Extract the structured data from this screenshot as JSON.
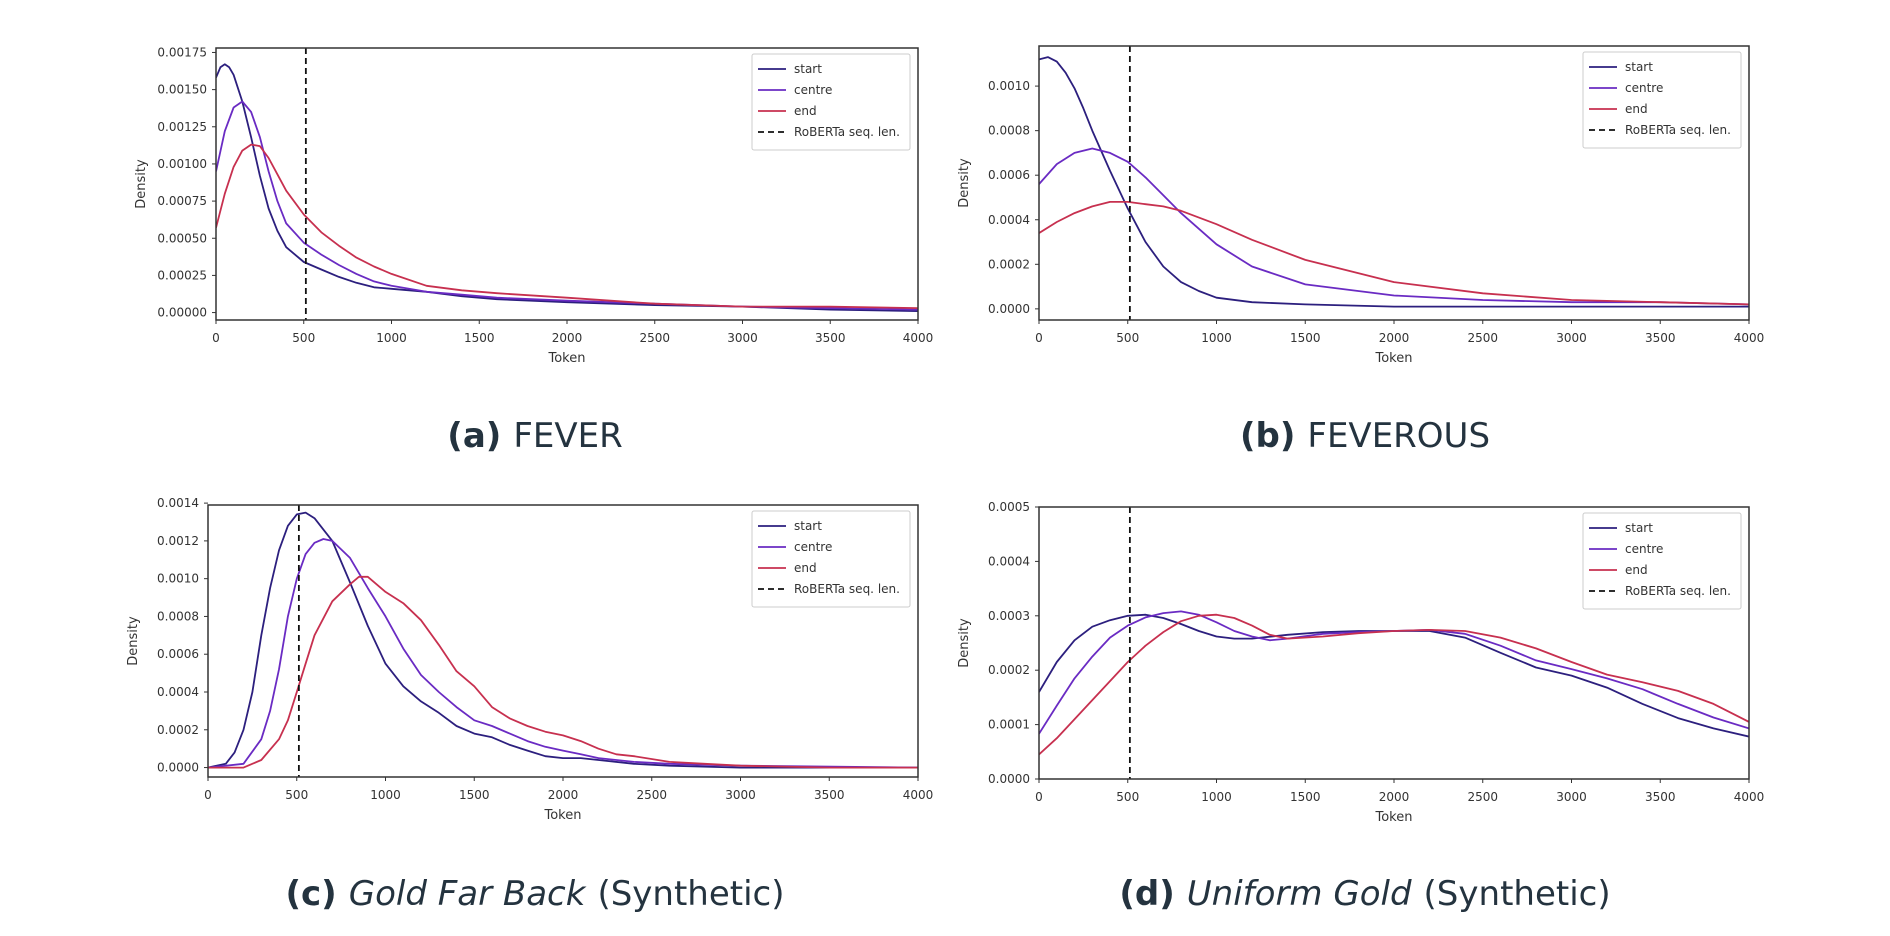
{
  "chart_data": [
    {
      "type": "line",
      "caption": {
        "label": "(a)",
        "pre": "FEVER",
        "italic": "",
        "post": ""
      },
      "xlabel": "Token",
      "ylabel": "Density",
      "xlim": [
        0,
        4000
      ],
      "ylim": [
        -5e-05,
        0.00178
      ],
      "xticks": [
        0,
        500,
        1000,
        1500,
        2000,
        2500,
        3000,
        3500,
        4000
      ],
      "xtick_labels": [
        "0",
        "500",
        "1000",
        "1500",
        "2000",
        "2500",
        "3000",
        "3500",
        "4000"
      ],
      "yticks": [
        0,
        0.00025,
        0.0005,
        0.00075,
        0.001,
        0.00125,
        0.0015,
        0.00175
      ],
      "ytick_labels": [
        "0.00000",
        "0.00025",
        "0.00050",
        "0.00075",
        "0.00100",
        "0.00125",
        "0.00150",
        "0.00175"
      ],
      "vline": {
        "x": 512,
        "name": "RoBERTa seq. len."
      },
      "legend": "top-right",
      "grid": false,
      "series": [
        {
          "name": "start",
          "color": "#2c1f7e",
          "x": [
            0,
            25,
            50,
            75,
            100,
            150,
            200,
            250,
            300,
            350,
            400,
            500,
            600,
            700,
            800,
            900,
            1000,
            1200,
            1400,
            1600,
            2000,
            2500,
            3000,
            3500,
            4000
          ],
          "y": [
            0.00158,
            0.00165,
            0.00167,
            0.00165,
            0.0016,
            0.00142,
            0.00118,
            0.00092,
            0.0007,
            0.00055,
            0.00044,
            0.00034,
            0.00029,
            0.00024,
            0.0002,
            0.00017,
            0.00016,
            0.00014,
            0.00011,
            9e-05,
            7e-05,
            5e-05,
            4e-05,
            2e-05,
            1e-05
          ]
        },
        {
          "name": "centre",
          "color": "#6a2bc3",
          "x": [
            0,
            50,
            100,
            150,
            200,
            250,
            300,
            350,
            400,
            500,
            600,
            700,
            800,
            900,
            1000,
            1200,
            1400,
            1600,
            2000,
            2500,
            3000,
            3500,
            4000
          ],
          "y": [
            0.00095,
            0.00122,
            0.00138,
            0.00142,
            0.00135,
            0.00118,
            0.00095,
            0.00075,
            0.0006,
            0.00047,
            0.00039,
            0.00032,
            0.00026,
            0.00021,
            0.00018,
            0.00014,
            0.00012,
            0.0001,
            8e-05,
            6e-05,
            4e-05,
            3e-05,
            2e-05
          ]
        },
        {
          "name": "end",
          "color": "#c7304f",
          "x": [
            0,
            50,
            100,
            150,
            200,
            250,
            300,
            350,
            400,
            500,
            600,
            700,
            800,
            900,
            1000,
            1200,
            1400,
            1600,
            2000,
            2500,
            3000,
            3500,
            4000
          ],
          "y": [
            0.00057,
            0.0008,
            0.00098,
            0.00109,
            0.00113,
            0.00112,
            0.00104,
            0.00093,
            0.00082,
            0.00066,
            0.00054,
            0.00045,
            0.00037,
            0.00031,
            0.00026,
            0.00018,
            0.00015,
            0.00013,
            0.0001,
            6e-05,
            4e-05,
            4e-05,
            3e-05
          ]
        }
      ]
    },
    {
      "type": "line",
      "caption": {
        "label": "(b)",
        "pre": "FEVEROUS",
        "italic": "",
        "post": ""
      },
      "xlabel": "Token",
      "ylabel": "Density",
      "xlim": [
        0,
        4000
      ],
      "ylim": [
        -5e-05,
        0.00118
      ],
      "xticks": [
        0,
        500,
        1000,
        1500,
        2000,
        2500,
        3000,
        3500,
        4000
      ],
      "xtick_labels": [
        "0",
        "500",
        "1000",
        "1500",
        "2000",
        "2500",
        "3000",
        "3500",
        "4000"
      ],
      "yticks": [
        0,
        0.0002,
        0.0004,
        0.0006,
        0.0008,
        0.001
      ],
      "ytick_labels": [
        "0.0000",
        "0.0002",
        "0.0004",
        "0.0006",
        "0.0008",
        "0.0010"
      ],
      "vline": {
        "x": 512,
        "name": "RoBERTa seq. len."
      },
      "legend": "top-right",
      "grid": false,
      "series": [
        {
          "name": "start",
          "color": "#2c1f7e",
          "x": [
            0,
            50,
            100,
            150,
            200,
            250,
            300,
            400,
            500,
            600,
            700,
            800,
            900,
            1000,
            1200,
            1500,
            2000,
            3000,
            4000
          ],
          "y": [
            0.00112,
            0.00113,
            0.00111,
            0.00106,
            0.00099,
            0.0009,
            0.0008,
            0.00062,
            0.00045,
            0.0003,
            0.00019,
            0.00012,
            8e-05,
            5e-05,
            3e-05,
            2e-05,
            1e-05,
            1e-05,
            1e-05
          ]
        },
        {
          "name": "centre",
          "color": "#6a2bc3",
          "x": [
            0,
            100,
            200,
            300,
            400,
            500,
            600,
            700,
            800,
            1000,
            1200,
            1500,
            2000,
            2500,
            3000,
            3500,
            4000
          ],
          "y": [
            0.00056,
            0.00065,
            0.0007,
            0.00072,
            0.0007,
            0.00066,
            0.00059,
            0.00051,
            0.00043,
            0.00029,
            0.00019,
            0.00011,
            6e-05,
            4e-05,
            3e-05,
            3e-05,
            2e-05
          ]
        },
        {
          "name": "end",
          "color": "#c7304f",
          "x": [
            0,
            100,
            200,
            300,
            400,
            500,
            600,
            700,
            800,
            1000,
            1200,
            1500,
            2000,
            2500,
            3000,
            3500,
            4000
          ],
          "y": [
            0.00034,
            0.00039,
            0.00043,
            0.00046,
            0.00048,
            0.00048,
            0.00047,
            0.00046,
            0.00044,
            0.00038,
            0.00031,
            0.00022,
            0.00012,
            7e-05,
            4e-05,
            3e-05,
            2e-05
          ]
        }
      ]
    },
    {
      "type": "line",
      "caption": {
        "label": "(c)",
        "pre": "",
        "italic": "Gold Far Back",
        "post": "(Synthetic)"
      },
      "xlabel": "Token",
      "ylabel": "Density",
      "xlim": [
        0,
        4000
      ],
      "ylim": [
        -5e-05,
        0.00139
      ],
      "xticks": [
        0,
        500,
        1000,
        1500,
        2000,
        2500,
        3000,
        3500,
        4000
      ],
      "xtick_labels": [
        "0",
        "500",
        "1000",
        "1500",
        "2000",
        "2500",
        "3000",
        "3500",
        "4000"
      ],
      "yticks": [
        0,
        0.0002,
        0.0004,
        0.0006,
        0.0008,
        0.001,
        0.0012,
        0.0014
      ],
      "ytick_labels": [
        "0.0000",
        "0.0002",
        "0.0004",
        "0.0006",
        "0.0008",
        "0.0010",
        "0.0012",
        "0.0014"
      ],
      "vline": {
        "x": 512,
        "name": "RoBERTa seq. len."
      },
      "legend": "top-right",
      "grid": false,
      "series": [
        {
          "name": "start",
          "color": "#2c1f7e",
          "x": [
            0,
            100,
            150,
            200,
            250,
            300,
            350,
            400,
            450,
            500,
            550,
            600,
            700,
            800,
            900,
            1000,
            1100,
            1200,
            1300,
            1400,
            1500,
            1600,
            1700,
            1800,
            1900,
            2000,
            2100,
            2200,
            2400,
            2600,
            3000,
            4000
          ],
          "y": [
            0,
            2e-05,
            8e-05,
            0.0002,
            0.0004,
            0.0007,
            0.00095,
            0.00115,
            0.00128,
            0.00134,
            0.00135,
            0.00132,
            0.0012,
            0.00098,
            0.00075,
            0.00055,
            0.00043,
            0.00035,
            0.00029,
            0.00022,
            0.00018,
            0.00016,
            0.00012,
            9e-05,
            6e-05,
            5e-05,
            5e-05,
            4e-05,
            2e-05,
            1e-05,
            0,
            0
          ]
        },
        {
          "name": "centre",
          "color": "#6a2bc3",
          "x": [
            0,
            200,
            300,
            350,
            400,
            450,
            500,
            550,
            600,
            650,
            700,
            800,
            900,
            1000,
            1100,
            1200,
            1300,
            1400,
            1500,
            1600,
            1700,
            1800,
            1900,
            2000,
            2100,
            2200,
            2400,
            2600,
            3000,
            4000
          ],
          "y": [
            0,
            2e-05,
            0.00015,
            0.0003,
            0.00052,
            0.0008,
            0.001,
            0.00113,
            0.00119,
            0.00121,
            0.0012,
            0.00111,
            0.00095,
            0.0008,
            0.00063,
            0.00049,
            0.0004,
            0.00032,
            0.00025,
            0.00022,
            0.00018,
            0.00014,
            0.00011,
            9e-05,
            7e-05,
            5e-05,
            3e-05,
            2e-05,
            1e-05,
            0
          ]
        },
        {
          "name": "end",
          "color": "#c7304f",
          "x": [
            0,
            200,
            300,
            400,
            450,
            500,
            550,
            600,
            700,
            800,
            850,
            900,
            1000,
            1100,
            1200,
            1300,
            1400,
            1500,
            1600,
            1700,
            1800,
            1900,
            2000,
            2100,
            2200,
            2300,
            2400,
            2600,
            2800,
            3000,
            3500,
            4000
          ],
          "y": [
            0,
            0,
            4e-05,
            0.00015,
            0.00025,
            0.0004,
            0.00055,
            0.0007,
            0.00088,
            0.00097,
            0.00101,
            0.00101,
            0.00093,
            0.00087,
            0.00078,
            0.00065,
            0.00051,
            0.00043,
            0.00032,
            0.00026,
            0.00022,
            0.00019,
            0.00017,
            0.00014,
            0.0001,
            7e-05,
            6e-05,
            3e-05,
            2e-05,
            1e-05,
            0,
            0
          ]
        }
      ]
    },
    {
      "type": "line",
      "caption": {
        "label": "(d)",
        "pre": "",
        "italic": "Uniform Gold",
        "post": "(Synthetic)"
      },
      "xlabel": "Token",
      "ylabel": "Density",
      "xlim": [
        0,
        4000
      ],
      "ylim": [
        0,
        0.0005
      ],
      "xticks": [
        0,
        500,
        1000,
        1500,
        2000,
        2500,
        3000,
        3500,
        4000
      ],
      "xtick_labels": [
        "0",
        "500",
        "1000",
        "1500",
        "2000",
        "2500",
        "3000",
        "3500",
        "4000"
      ],
      "yticks": [
        0,
        0.0001,
        0.0002,
        0.0003,
        0.0004,
        0.0005
      ],
      "ytick_labels": [
        "0.0000",
        "0.0001",
        "0.0002",
        "0.0003",
        "0.0004",
        "0.0005"
      ],
      "vline": {
        "x": 512,
        "name": "RoBERTa seq. len."
      },
      "legend": "top-right",
      "grid": false,
      "series": [
        {
          "name": "start",
          "color": "#2c1f7e",
          "x": [
            0,
            100,
            200,
            300,
            400,
            500,
            600,
            700,
            800,
            900,
            1000,
            1100,
            1200,
            1400,
            1600,
            1800,
            2000,
            2200,
            2400,
            2600,
            2800,
            3000,
            3200,
            3400,
            3600,
            3800,
            4000
          ],
          "y": [
            0.00016,
            0.000215,
            0.000255,
            0.00028,
            0.000292,
            0.0003,
            0.000302,
            0.000296,
            0.000285,
            0.000272,
            0.000262,
            0.000258,
            0.000258,
            0.000265,
            0.00027,
            0.000272,
            0.000272,
            0.000272,
            0.00026,
            0.000232,
            0.000205,
            0.00019,
            0.000168,
            0.000138,
            0.000112,
            9.3e-05,
            7.8e-05
          ]
        },
        {
          "name": "centre",
          "color": "#6a2bc3",
          "x": [
            0,
            100,
            200,
            300,
            400,
            500,
            600,
            700,
            800,
            900,
            1000,
            1100,
            1200,
            1300,
            1400,
            1600,
            1800,
            2000,
            2200,
            2400,
            2600,
            2800,
            3000,
            3200,
            3400,
            3600,
            3800,
            4000
          ],
          "y": [
            8.3e-05,
            0.000135,
            0.000185,
            0.000225,
            0.00026,
            0.000282,
            0.000297,
            0.000305,
            0.000308,
            0.000302,
            0.000288,
            0.000272,
            0.000262,
            0.000255,
            0.000258,
            0.000267,
            0.00027,
            0.000272,
            0.000274,
            0.000267,
            0.000245,
            0.000218,
            0.000202,
            0.000185,
            0.000165,
            0.000138,
            0.000113,
            9.3e-05
          ]
        },
        {
          "name": "end",
          "color": "#c7304f",
          "x": [
            0,
            100,
            200,
            300,
            400,
            500,
            600,
            700,
            800,
            900,
            1000,
            1100,
            1200,
            1300,
            1400,
            1600,
            1800,
            2000,
            2200,
            2400,
            2600,
            2800,
            3000,
            3200,
            3400,
            3600,
            3800,
            4000
          ],
          "y": [
            4.5e-05,
            7.5e-05,
            0.00011,
            0.000145,
            0.00018,
            0.000215,
            0.000245,
            0.00027,
            0.00029,
            0.0003,
            0.000302,
            0.000296,
            0.000282,
            0.000265,
            0.000258,
            0.000262,
            0.000268,
            0.000272,
            0.000274,
            0.000272,
            0.00026,
            0.00024,
            0.000215,
            0.000192,
            0.000178,
            0.000162,
            0.000138,
            0.000105
          ]
        }
      ]
    }
  ]
}
